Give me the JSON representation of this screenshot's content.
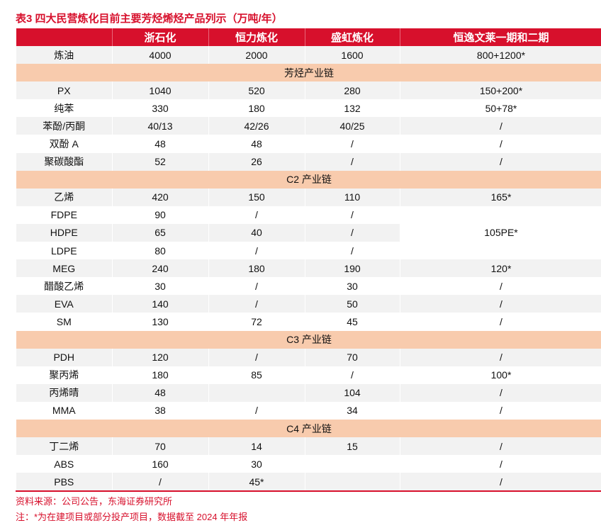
{
  "title": "表3  四大民营炼化目前主要芳烃烯烃产品列示（万吨/年）",
  "columns": [
    "",
    "浙石化",
    "恒力炼化",
    "盛虹炼化",
    "恒逸文莱一期和二期"
  ],
  "rows": [
    {
      "type": "row",
      "cells": [
        "炼油",
        "4000",
        "2000",
        "1600",
        "800+1200*"
      ]
    },
    {
      "type": "section",
      "label": "芳烃产业链"
    },
    {
      "type": "row",
      "cells": [
        "PX",
        "1040",
        "520",
        "280",
        "150+200*"
      ]
    },
    {
      "type": "row",
      "cells": [
        "纯苯",
        "330",
        "180",
        "132",
        "50+78*"
      ]
    },
    {
      "type": "row",
      "cells": [
        "苯酚/丙酮",
        "40/13",
        "42/26",
        "40/25",
        "/"
      ]
    },
    {
      "type": "row",
      "cells": [
        "双酚 A",
        "48",
        "48",
        "/",
        "/"
      ]
    },
    {
      "type": "row",
      "cells": [
        "聚碳酸酯",
        "52",
        "26",
        "/",
        "/"
      ]
    },
    {
      "type": "section",
      "label": "C2 产业链"
    },
    {
      "type": "row",
      "cells": [
        "乙烯",
        "420",
        "150",
        "110",
        "165*"
      ]
    },
    {
      "type": "row",
      "cells": [
        "FDPE",
        "90",
        "/",
        "/",
        "105PE*"
      ],
      "rowspan_last": 3
    },
    {
      "type": "row",
      "cells": [
        "HDPE",
        "65",
        "40",
        "/"
      ]
    },
    {
      "type": "row",
      "cells": [
        "LDPE",
        "80",
        "/",
        "/"
      ]
    },
    {
      "type": "row",
      "cells": [
        "MEG",
        "240",
        "180",
        "190",
        "120*"
      ]
    },
    {
      "type": "row",
      "cells": [
        "醋酸乙烯",
        "30",
        "/",
        "30",
        "/"
      ]
    },
    {
      "type": "row",
      "cells": [
        "EVA",
        "140",
        "/",
        "50",
        "/"
      ]
    },
    {
      "type": "row",
      "cells": [
        "SM",
        "130",
        "72",
        "45",
        "/"
      ]
    },
    {
      "type": "section",
      "label": "C3 产业链"
    },
    {
      "type": "row",
      "cells": [
        "PDH",
        "120",
        "/",
        "70",
        "/"
      ]
    },
    {
      "type": "row",
      "cells": [
        "聚丙烯",
        "180",
        "85",
        "/",
        "100*"
      ]
    },
    {
      "type": "row",
      "cells": [
        "丙烯晴",
        "48",
        "",
        "104",
        "/"
      ]
    },
    {
      "type": "row",
      "cells": [
        "MMA",
        "38",
        "/",
        "34",
        "/"
      ]
    },
    {
      "type": "section",
      "label": "C4 产业链"
    },
    {
      "type": "row",
      "cells": [
        "丁二烯",
        "70",
        "14",
        "15",
        "/"
      ]
    },
    {
      "type": "row",
      "cells": [
        "ABS",
        "160",
        "30",
        "",
        "/"
      ]
    },
    {
      "type": "row",
      "cells": [
        "PBS",
        "/",
        "45*",
        "",
        "/"
      ]
    }
  ],
  "source": "资料来源：公司公告，东海证券研究所",
  "note": "注：*为在建项目或部分投产项目，数据截至 2024 年年报",
  "colors": {
    "accent": "#d7102c",
    "section": "#f8cbad",
    "stripe": "#f2f2f2"
  }
}
